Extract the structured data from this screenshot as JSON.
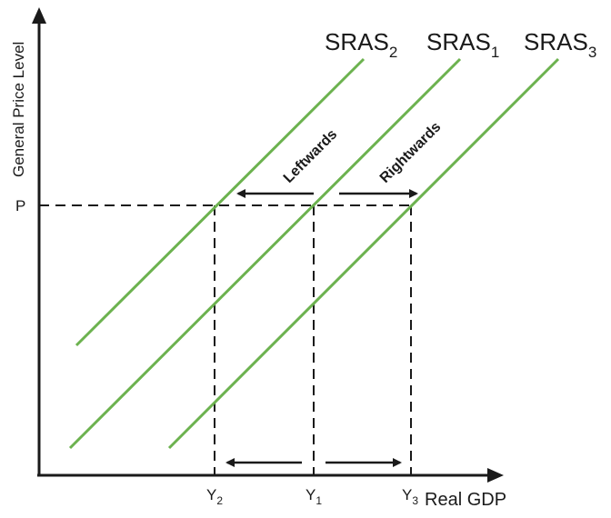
{
  "diagram": {
    "y_axis_label": "General Price Level",
    "x_axis_label": "Real GDP",
    "price_label": "P",
    "curves": [
      {
        "id": "sras2",
        "name": "SRAS",
        "sub": "2"
      },
      {
        "id": "sras1",
        "name": "SRAS",
        "sub": "1"
      },
      {
        "id": "sras3",
        "name": "SRAS",
        "sub": "3"
      }
    ],
    "output_ticks": [
      {
        "name": "Y",
        "sub": "2"
      },
      {
        "name": "Y",
        "sub": "1"
      },
      {
        "name": "Y",
        "sub": "3"
      }
    ],
    "shift_labels": {
      "left": "Leftwards",
      "right": "Rightwards"
    },
    "colors": {
      "curve": "#6cb24f",
      "axis": "#1a1a1a"
    }
  }
}
